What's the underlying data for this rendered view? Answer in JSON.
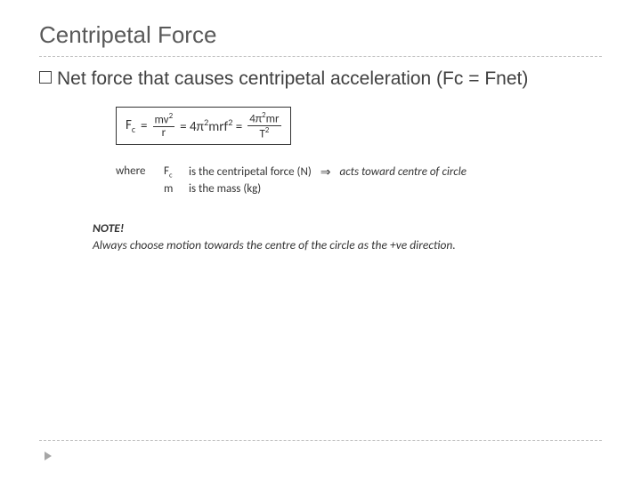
{
  "colors": {
    "title": "#595959",
    "body": "#404040",
    "formula": "#333333",
    "divider": "#bfbfbf",
    "corner_arrow": "#a6a6a6",
    "background": "#ffffff"
  },
  "typography": {
    "title_fontsize": 26,
    "body_fontsize": 21,
    "formula_fontsize": 15,
    "defs_fontsize": 13,
    "note_fontsize": 13.5,
    "formula_family": "Calibri"
  },
  "title": "Centripetal Force",
  "bullet": {
    "text": "Net force that causes centripetal acceleration (Fc = Fnet)"
  },
  "formula": {
    "lhs_base": "F",
    "lhs_sub": "c",
    "eq": "=",
    "frac1_num": "mv",
    "frac1_num_sup": "2",
    "frac1_den": "r",
    "mid1_a": "= 4π",
    "mid1_sup": "2",
    "mid1_b": "mrf",
    "mid1_sup2": "2",
    "mid1_c": " =",
    "frac2_num_a": "4π",
    "frac2_num_sup": "2",
    "frac2_num_b": "mr",
    "frac2_den_a": "T",
    "frac2_den_sup": "2"
  },
  "defs": {
    "where": "where",
    "line1_sym": "F",
    "line1_sub": "c",
    "line1_text": "is the centripetal force (N)",
    "line1_extra": "acts toward centre of circle",
    "arrow": "⇒",
    "line2_sym": "m",
    "line2_text": "is the mass (kg)"
  },
  "note": {
    "heading": "NOTE!",
    "text": "Always choose motion towards the centre of the circle as the +ve direction."
  }
}
